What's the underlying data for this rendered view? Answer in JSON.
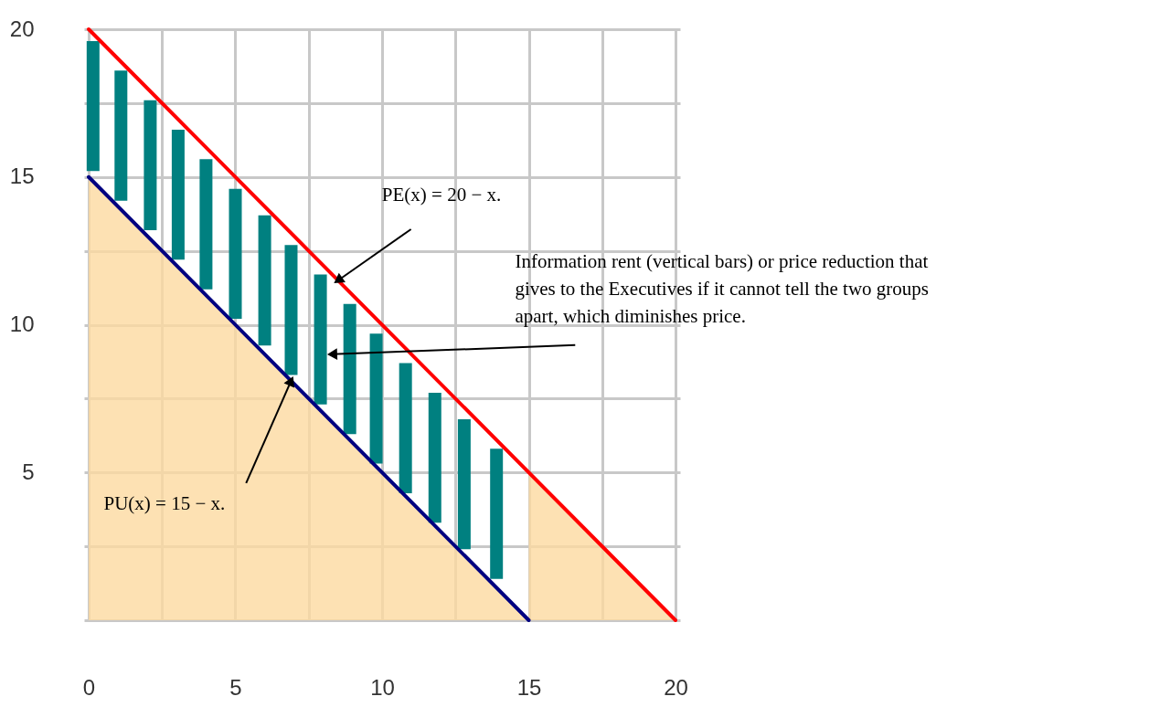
{
  "chart_data": {
    "type": "bar",
    "xlim": [
      0,
      20
    ],
    "ylim": [
      0,
      20
    ],
    "xticks": [
      0,
      {
        "value": 2.5,
        "label": null
      },
      5,
      {
        "value": 7.5,
        "label": null
      },
      10,
      {
        "value": 12.5,
        "label": null
      },
      15,
      {
        "value": 17.5,
        "label": null
      },
      20
    ],
    "yticks": [
      {
        "value": 0,
        "label": null
      },
      {
        "value": 2.5,
        "label": null
      },
      5,
      {
        "value": 7.5,
        "label": null
      },
      10,
      {
        "value": 12.5,
        "label": null
      },
      15,
      {
        "value": 17.5,
        "label": null
      },
      20
    ],
    "grid": true,
    "series": [
      {
        "type": "area",
        "color": "#fcd9a0",
        "x": [
          0,
          15,
          15,
          20
        ],
        "values": [
          15,
          0,
          5,
          0
        ]
      },
      {
        "color": "#008080",
        "x": [
          0.15,
          1.1,
          2.1,
          3.05,
          4.0,
          5.0,
          6.0,
          6.9,
          7.9,
          8.9,
          9.8,
          10.8,
          11.8,
          12.8,
          13.9
        ],
        "base": [
          15.2,
          14.2,
          13.2,
          12.2,
          11.2,
          10.2,
          9.3,
          8.3,
          7.3,
          6.3,
          5.3,
          4.3,
          3.3,
          2.4,
          1.4
        ],
        "values": [
          4.4,
          4.4,
          4.4,
          4.4,
          4.4,
          4.4,
          4.4,
          4.4,
          4.4,
          4.4,
          4.4,
          4.4,
          4.4,
          4.4,
          4.4
        ]
      },
      {
        "type": "line",
        "color": "#ff0000",
        "x": [
          0,
          20
        ],
        "values": [
          20,
          0
        ]
      },
      {
        "type": "line",
        "color": "#000080",
        "x": [
          0,
          15
        ],
        "values": [
          15,
          0
        ]
      }
    ],
    "annotations": [
      {
        "text": "PE(x) = 20 − x.",
        "x": 8.5,
        "y": 11.5
      },
      {
        "text": "Information rent (vertical bars) or price reduction that gives to the Executives if it cannot tell the two groups apart, which diminishes price.",
        "x": 8.3,
        "y": 9.0
      },
      {
        "text": "PU(x) = 15 − x.",
        "x": 6.9,
        "y": 8.1
      }
    ]
  }
}
